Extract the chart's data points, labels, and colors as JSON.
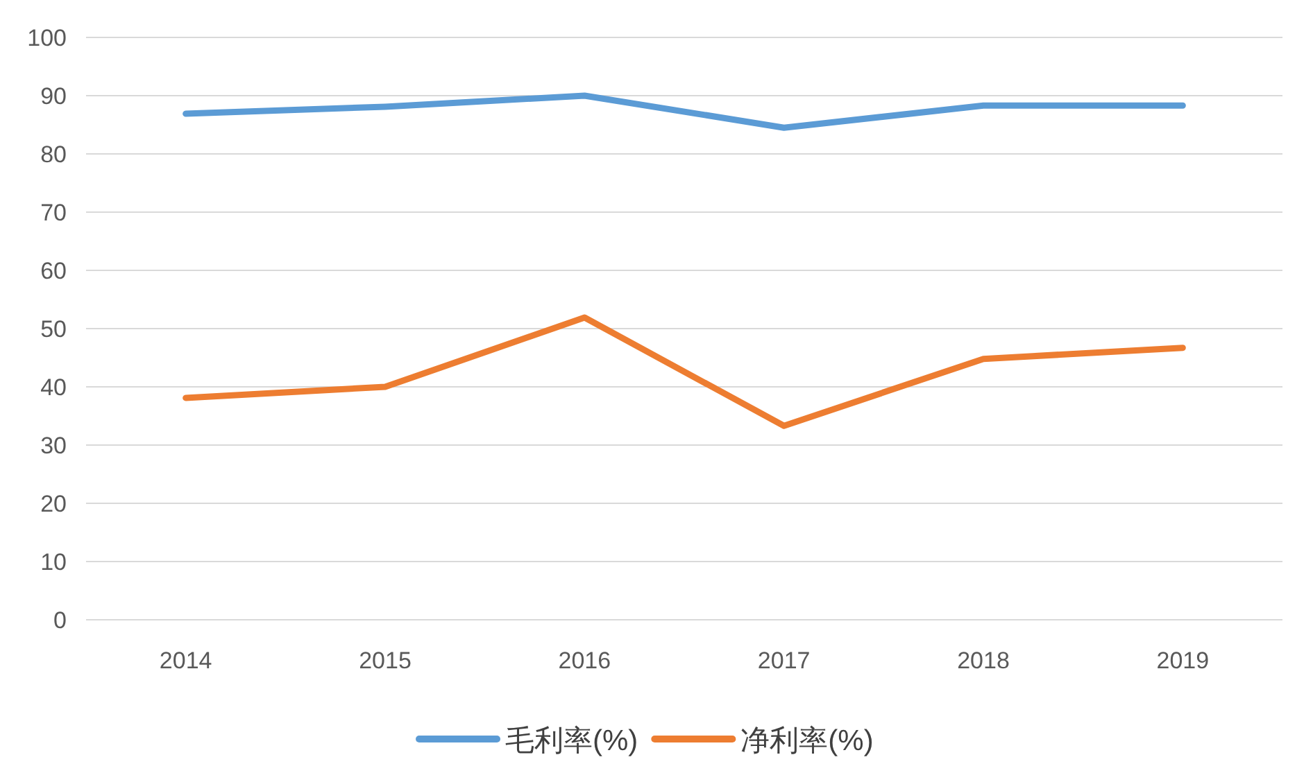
{
  "chart_data": {
    "type": "line",
    "categories": [
      "2014",
      "2015",
      "2016",
      "2017",
      "2018",
      "2019"
    ],
    "series": [
      {
        "name": "毛利率(%)",
        "color": "#5b9bd5",
        "values": [
          86.9,
          88.1,
          90,
          84.5,
          88.3,
          88.3
        ]
      },
      {
        "name": "净利率(%)",
        "color": "#ed7d31",
        "values": [
          38.1,
          40,
          51.9,
          33.3,
          44.8,
          46.7
        ]
      }
    ],
    "ylim": [
      0,
      100
    ],
    "yticks": [
      0,
      10,
      20,
      30,
      40,
      50,
      60,
      70,
      80,
      90,
      100
    ],
    "grid": "y",
    "legend": "bottom",
    "marker": "none",
    "line_style": "solid"
  }
}
